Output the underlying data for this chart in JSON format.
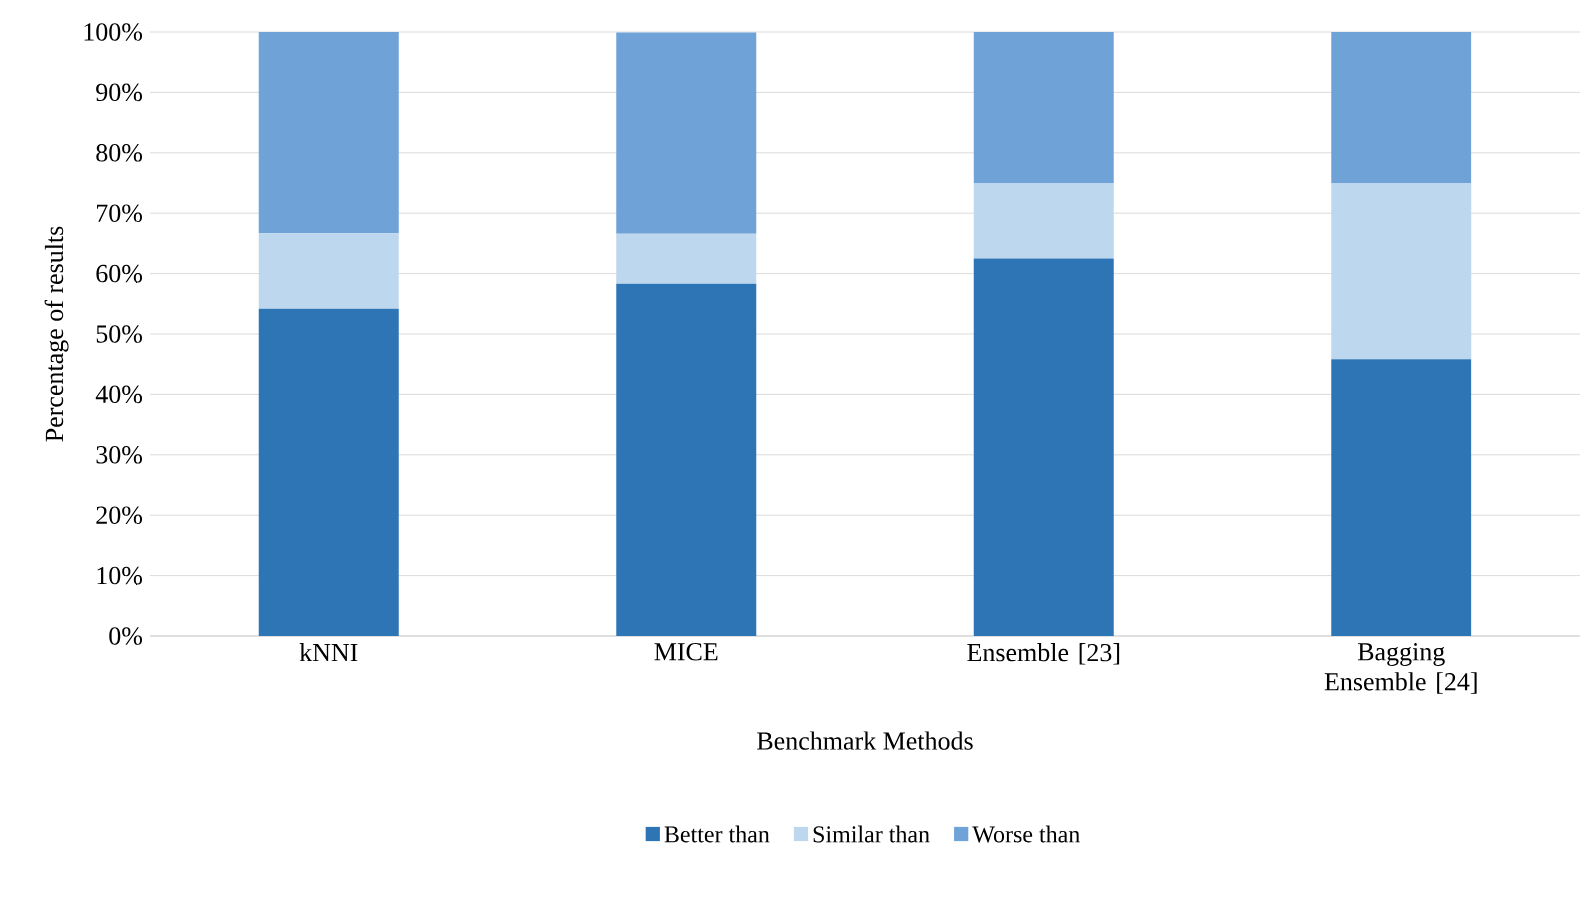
{
  "chart_data": {
    "type": "bar",
    "stacked": true,
    "xlabel": "Benchmark Methods",
    "ylabel": "Percentage of results",
    "categories": [
      "kNNI",
      "MICE",
      "Ensemble [23]",
      "Bagging Ensemble [24]"
    ],
    "series": [
      {
        "name": "Better than",
        "color": "#2e75b6",
        "values": [
          54.2,
          58.3,
          62.5,
          45.8
        ]
      },
      {
        "name": "Similar than",
        "color": "#bdd7ee",
        "values": [
          12.5,
          8.3,
          12.5,
          29.2
        ]
      },
      {
        "name": "Worse than",
        "color": "#6fa3d8",
        "values": [
          33.3,
          33.3,
          25.0,
          25.0
        ]
      }
    ],
    "ylim": [
      0,
      100
    ],
    "yticks": [
      {
        "value": 0,
        "label": "0%"
      },
      {
        "value": 10,
        "label": "10%"
      },
      {
        "value": 20,
        "label": "20%"
      },
      {
        "value": 30,
        "label": "30%"
      },
      {
        "value": 40,
        "label": "40%"
      },
      {
        "value": 50,
        "label": "50%"
      },
      {
        "value": 60,
        "label": "60%"
      },
      {
        "value": 70,
        "label": "70%"
      },
      {
        "value": 80,
        "label": "80%"
      },
      {
        "value": 90,
        "label": "90%"
      },
      {
        "value": 100,
        "label": "100%"
      }
    ],
    "grid": "y",
    "legend": "bottom"
  }
}
